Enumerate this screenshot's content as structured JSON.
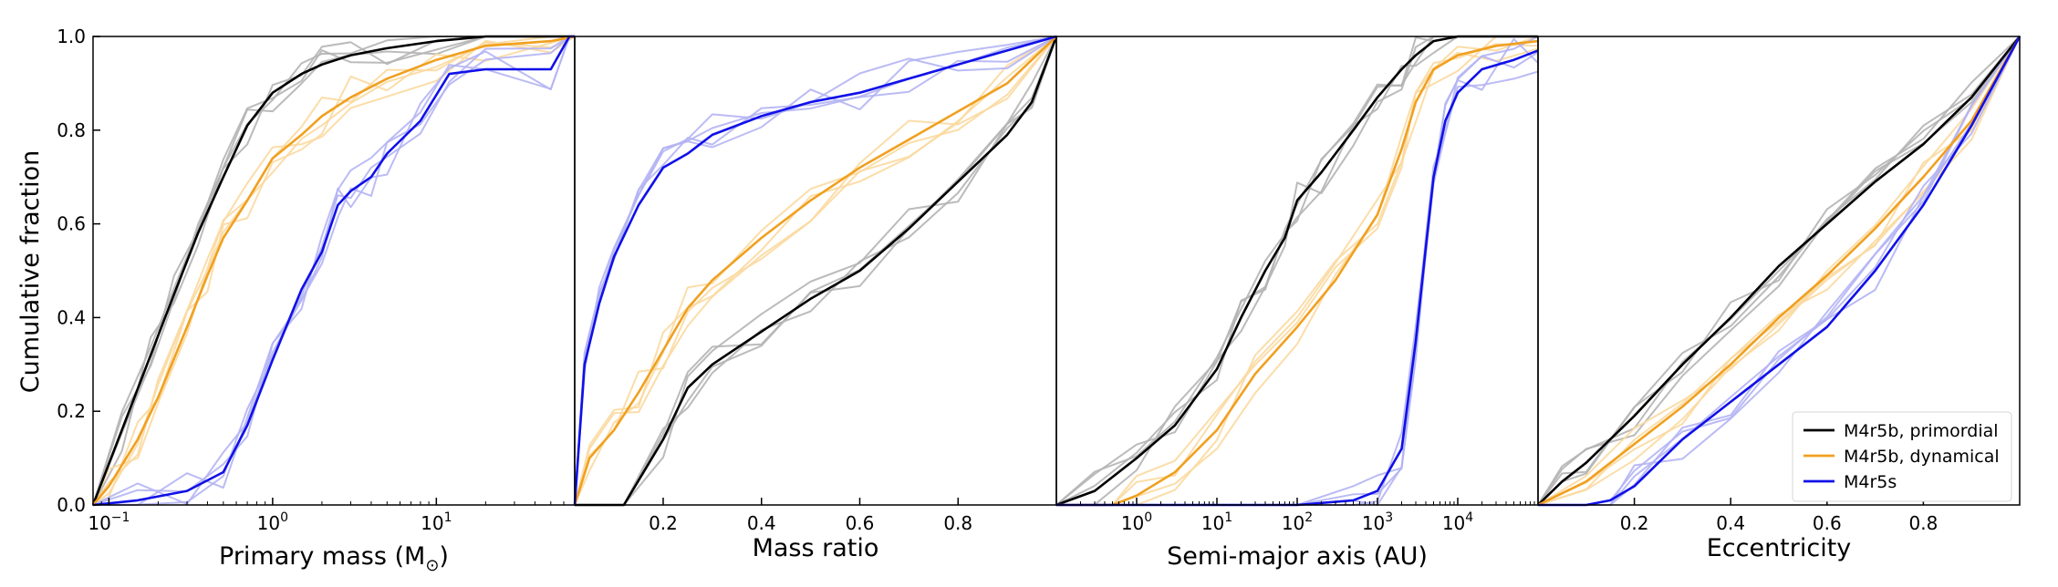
{
  "colors": {
    "primordial": "#000000",
    "dynamical": "#f0a020",
    "m4r5s": "#1010e8",
    "primordial_faint": "#b4b4b4",
    "dynamical_faint": "#fbd9a0",
    "m4r5s_faint": "#b4b4f4"
  },
  "legend": {
    "placement": "lower-right of last panel",
    "items": [
      {
        "label": "M4r5b, primordial",
        "color_key": "primordial"
      },
      {
        "label": "M4r5b, dynamical",
        "color_key": "dynamical"
      },
      {
        "label": "M4r5s",
        "color_key": "m4r5s"
      }
    ]
  },
  "chart_data": [
    {
      "type": "line",
      "xlabel": "Primary mass (M⊙)",
      "ylabel": "Cumulative fraction",
      "xscale": "log",
      "xlim": [
        0.08,
        70
      ],
      "ylim": [
        0,
        1
      ],
      "xticks": [
        {
          "value": 0.1,
          "base": "10",
          "exp": "−1"
        },
        {
          "value": 1,
          "base": "10",
          "exp": "0"
        },
        {
          "value": 10,
          "base": "10",
          "exp": "1"
        }
      ],
      "yticks": [
        "0.0",
        "0.2",
        "0.4",
        "0.6",
        "0.8",
        "1.0"
      ],
      "series": [
        {
          "name": "M4r5b, primordial",
          "color_key": "primordial",
          "x": [
            0.08,
            0.12,
            0.18,
            0.25,
            0.35,
            0.5,
            0.7,
            1.0,
            1.5,
            2,
            3,
            5,
            10,
            20,
            50,
            70
          ],
          "y": [
            0.0,
            0.16,
            0.32,
            0.45,
            0.58,
            0.7,
            0.81,
            0.88,
            0.92,
            0.94,
            0.96,
            0.975,
            0.99,
            1.0,
            1.0,
            1.0
          ]
        },
        {
          "name": "M4r5b, dynamical",
          "color_key": "dynamical",
          "x": [
            0.08,
            0.1,
            0.15,
            0.2,
            0.3,
            0.4,
            0.5,
            0.7,
            1.0,
            1.5,
            2,
            3,
            5,
            10,
            20,
            50,
            70
          ],
          "y": [
            0.0,
            0.04,
            0.14,
            0.23,
            0.38,
            0.49,
            0.57,
            0.65,
            0.74,
            0.79,
            0.83,
            0.87,
            0.91,
            0.95,
            0.98,
            0.99,
            1.0
          ]
        },
        {
          "name": "M4r5s",
          "color_key": "m4r5s",
          "x": [
            0.08,
            0.15,
            0.3,
            0.5,
            0.7,
            1.0,
            1.5,
            2,
            2.5,
            3,
            4,
            5,
            8,
            12,
            20,
            50,
            65,
            70
          ],
          "y": [
            0.0,
            0.01,
            0.03,
            0.07,
            0.17,
            0.31,
            0.46,
            0.54,
            0.64,
            0.67,
            0.7,
            0.75,
            0.82,
            0.92,
            0.93,
            0.93,
            1.0,
            1.0
          ]
        }
      ]
    },
    {
      "type": "line",
      "xlabel": "Mass ratio",
      "xscale": "linear",
      "xlim": [
        0.02,
        1.0
      ],
      "ylim": [
        0,
        1
      ],
      "xticks": [
        {
          "value": 0.2,
          "label": "0.2"
        },
        {
          "value": 0.4,
          "label": "0.4"
        },
        {
          "value": 0.6,
          "label": "0.6"
        },
        {
          "value": 0.8,
          "label": "0.8"
        }
      ],
      "series": [
        {
          "name": "M4r5b, primordial",
          "color_key": "primordial",
          "x": [
            0.02,
            0.12,
            0.2,
            0.25,
            0.3,
            0.4,
            0.5,
            0.6,
            0.7,
            0.8,
            0.9,
            0.95,
            1.0
          ],
          "y": [
            0.0,
            0.0,
            0.14,
            0.25,
            0.3,
            0.37,
            0.44,
            0.5,
            0.59,
            0.69,
            0.79,
            0.86,
            1.0
          ]
        },
        {
          "name": "M4r5b, dynamical",
          "color_key": "dynamical",
          "x": [
            0.02,
            0.05,
            0.1,
            0.15,
            0.2,
            0.25,
            0.3,
            0.4,
            0.5,
            0.6,
            0.7,
            0.8,
            0.9,
            1.0
          ],
          "y": [
            0.0,
            0.1,
            0.16,
            0.24,
            0.33,
            0.42,
            0.48,
            0.57,
            0.65,
            0.72,
            0.78,
            0.84,
            0.9,
            1.0
          ]
        },
        {
          "name": "M4r5s",
          "color_key": "m4r5s",
          "x": [
            0.02,
            0.04,
            0.07,
            0.1,
            0.15,
            0.2,
            0.25,
            0.3,
            0.4,
            0.5,
            0.6,
            0.7,
            0.8,
            0.9,
            1.0
          ],
          "y": [
            0.0,
            0.3,
            0.43,
            0.53,
            0.64,
            0.72,
            0.75,
            0.79,
            0.83,
            0.86,
            0.88,
            0.91,
            0.94,
            0.97,
            1.0
          ]
        }
      ]
    },
    {
      "type": "line",
      "xlabel": "Semi-major axis (AU)",
      "xscale": "log",
      "xlim": [
        0.1,
        100000
      ],
      "ylim": [
        0,
        1
      ],
      "xticks": [
        {
          "value": 1,
          "base": "10",
          "exp": "0"
        },
        {
          "value": 10,
          "base": "10",
          "exp": "1"
        },
        {
          "value": 100,
          "base": "10",
          "exp": "2"
        },
        {
          "value": 1000,
          "base": "10",
          "exp": "3"
        },
        {
          "value": 10000,
          "base": "10",
          "exp": "4"
        }
      ],
      "series": [
        {
          "name": "M4r5b, primordial",
          "color_key": "primordial",
          "x": [
            0.1,
            0.3,
            1,
            3,
            10,
            20,
            40,
            70,
            100,
            200,
            500,
            1000,
            2000,
            3000,
            5000,
            10000,
            20000,
            100000
          ],
          "y": [
            0.0,
            0.03,
            0.1,
            0.17,
            0.29,
            0.4,
            0.5,
            0.57,
            0.65,
            0.71,
            0.8,
            0.87,
            0.93,
            0.96,
            0.99,
            1.0,
            1.0,
            1.0
          ]
        },
        {
          "name": "M4r5b, dynamical",
          "color_key": "dynamical",
          "x": [
            0.1,
            0.5,
            1,
            3,
            10,
            30,
            100,
            300,
            1000,
            2000,
            3000,
            5000,
            10000,
            30000,
            100000
          ],
          "y": [
            0.0,
            0.0,
            0.02,
            0.07,
            0.16,
            0.28,
            0.38,
            0.48,
            0.62,
            0.76,
            0.86,
            0.93,
            0.96,
            0.98,
            0.99
          ]
        },
        {
          "name": "M4r5s",
          "color_key": "m4r5s",
          "x": [
            0.1,
            10,
            100,
            500,
            1000,
            2000,
            3000,
            4000,
            5000,
            7000,
            10000,
            20000,
            50000,
            100000
          ],
          "y": [
            0.0,
            0.0,
            0.0,
            0.01,
            0.03,
            0.12,
            0.35,
            0.55,
            0.7,
            0.82,
            0.88,
            0.93,
            0.95,
            0.97
          ]
        }
      ]
    },
    {
      "type": "line",
      "xlabel": "Eccentricity",
      "xscale": "linear",
      "xlim": [
        0.0,
        1.0
      ],
      "ylim": [
        0,
        1
      ],
      "xticks": [
        {
          "value": 0.2,
          "label": "0.2"
        },
        {
          "value": 0.4,
          "label": "0.4"
        },
        {
          "value": 0.6,
          "label": "0.6"
        },
        {
          "value": 0.8,
          "label": "0.8"
        }
      ],
      "series": [
        {
          "name": "M4r5b, primordial",
          "color_key": "primordial",
          "x": [
            0.0,
            0.05,
            0.1,
            0.2,
            0.3,
            0.4,
            0.5,
            0.6,
            0.7,
            0.8,
            0.9,
            1.0
          ],
          "y": [
            0.0,
            0.05,
            0.09,
            0.19,
            0.3,
            0.4,
            0.51,
            0.6,
            0.69,
            0.77,
            0.87,
            1.0
          ]
        },
        {
          "name": "M4r5b, dynamical",
          "color_key": "dynamical",
          "x": [
            0.0,
            0.1,
            0.2,
            0.3,
            0.4,
            0.5,
            0.6,
            0.7,
            0.8,
            0.9,
            1.0
          ],
          "y": [
            0.0,
            0.05,
            0.13,
            0.21,
            0.3,
            0.4,
            0.49,
            0.59,
            0.7,
            0.82,
            1.0
          ]
        },
        {
          "name": "M4r5s",
          "color_key": "m4r5s",
          "x": [
            0.0,
            0.1,
            0.15,
            0.2,
            0.3,
            0.4,
            0.5,
            0.6,
            0.7,
            0.8,
            0.9,
            1.0
          ],
          "y": [
            0.0,
            0.0,
            0.01,
            0.04,
            0.14,
            0.22,
            0.3,
            0.38,
            0.5,
            0.64,
            0.81,
            1.0
          ]
        }
      ]
    }
  ]
}
